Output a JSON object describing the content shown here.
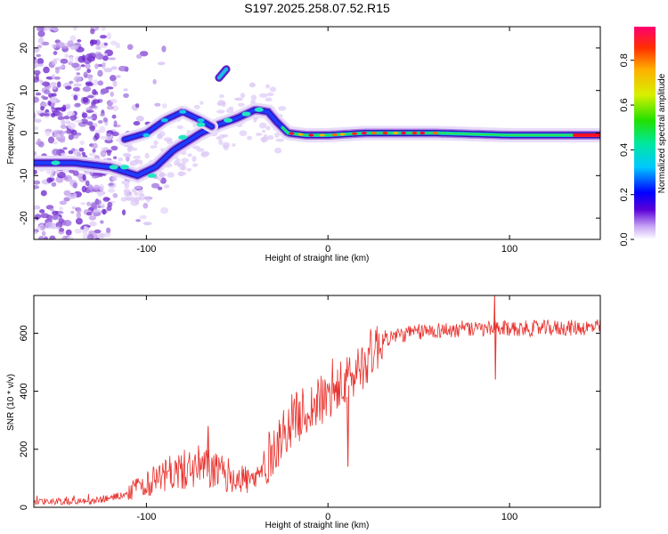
{
  "title": "S197.2025.258.07.52.R15",
  "chart_data": [
    {
      "type": "heatmap",
      "xlabel": "Height of straight line (km)",
      "ylabel": "Frequency (Hz)",
      "xlim": [
        -162,
        150
      ],
      "ylim": [
        -25,
        25
      ],
      "xticks": [
        -100,
        0,
        100
      ],
      "yticks": [
        -20,
        -10,
        0,
        10,
        20
      ],
      "colorbar": {
        "label": "Normalized spectral amplitude",
        "range": [
          0,
          0.95
        ],
        "ticks": [
          0.0,
          0.2,
          0.4,
          0.6,
          0.8
        ],
        "tick_labels": [
          "0.0",
          "0.2",
          "0.4",
          "0.6",
          "0.8"
        ]
      },
      "ridge_main": [
        [
          -162,
          -7
        ],
        [
          -140,
          -7
        ],
        [
          -120,
          -8
        ],
        [
          -105,
          -10
        ],
        [
          -95,
          -8
        ],
        [
          -85,
          -4
        ],
        [
          -70,
          0
        ],
        [
          -60,
          2
        ],
        [
          -50,
          3.5
        ],
        [
          -40,
          5.5
        ],
        [
          -33,
          5
        ],
        [
          -28,
          2.5
        ],
        [
          -22,
          0
        ],
        [
          -12,
          -0.5
        ],
        [
          0,
          -0.5
        ],
        [
          20,
          0
        ],
        [
          60,
          0
        ],
        [
          100,
          -0.5
        ],
        [
          150,
          -0.5
        ]
      ],
      "ridge_upper": [
        [
          -112,
          -1.5
        ],
        [
          -100,
          0
        ],
        [
          -90,
          3
        ],
        [
          -80,
          5
        ],
        [
          -70,
          3
        ],
        [
          -64,
          1.5
        ]
      ],
      "blob": [
        [
          -60,
          13
        ],
        [
          -56,
          15
        ]
      ]
    },
    {
      "type": "line",
      "xlabel": "Height of straight line (km)",
      "ylabel": "SNR (10 * v/v)",
      "xlim": [
        -162,
        150
      ],
      "ylim": [
        0,
        730
      ],
      "xticks": [
        -100,
        0,
        100
      ],
      "yticks": [
        0,
        200,
        400,
        600
      ],
      "color": "#e8322e",
      "trend": [
        [
          -162,
          20
        ],
        [
          -130,
          20
        ],
        [
          -115,
          40
        ],
        [
          -100,
          80
        ],
        [
          -85,
          120
        ],
        [
          -70,
          140
        ],
        [
          -55,
          110
        ],
        [
          -40,
          90
        ],
        [
          -30,
          200
        ],
        [
          -20,
          300
        ],
        [
          -10,
          340
        ],
        [
          0,
          380
        ],
        [
          10,
          430
        ],
        [
          20,
          500
        ],
        [
          30,
          580
        ],
        [
          45,
          600
        ],
        [
          60,
          610
        ],
        [
          100,
          615
        ],
        [
          150,
          620
        ]
      ],
      "spikes": [
        [
          -66,
          280
        ],
        [
          11,
          140
        ],
        [
          92,
          730
        ],
        [
          92,
          440
        ]
      ]
    }
  ]
}
